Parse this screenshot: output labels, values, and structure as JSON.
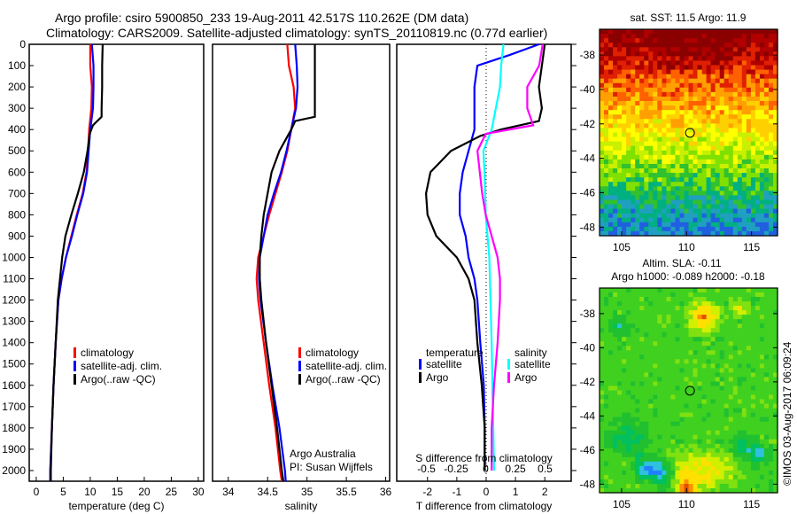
{
  "title": {
    "line1": "Argo profile: csiro 5900850_233 19-Aug-2011 42.517S 110.262E (DM data)",
    "line2": "Climatology: CARS2009. Satellite-adjusted climatology: synTS_20110819.nc (0.77d earlier)"
  },
  "colors": {
    "climatology": "#ff0000",
    "satellite": "#0000ff",
    "argo": "#000000",
    "sal_satellite": "#00ffff",
    "sal_argo": "#ff00ff"
  },
  "credit": "©IMOS 03-Aug-2017 06:09:24",
  "attribution": {
    "line1": "Argo Australia",
    "line2": "PI: Susan Wijffels"
  },
  "chart_data": [
    {
      "type": "line",
      "id": "temp",
      "xlabel": "temperature (deg C)",
      "xlim": [
        -1.3,
        31
      ],
      "ylim": [
        2050,
        0
      ],
      "xticks": [
        0,
        5,
        10,
        15,
        20,
        25,
        30
      ],
      "yticks": [
        0,
        100,
        200,
        300,
        400,
        500,
        600,
        700,
        800,
        900,
        1000,
        1100,
        1200,
        1300,
        1400,
        1500,
        1600,
        1700,
        1800,
        1900,
        2000
      ],
      "legend": [
        "climatology",
        "satellite-adj. clim.",
        "Argo(..raw -QC)"
      ],
      "series": [
        {
          "name": "climatology",
          "color": "#ff0000",
          "depth": [
            0,
            100,
            200,
            300,
            400,
            500,
            600,
            700,
            800,
            900,
            1000,
            1100,
            1200,
            1400,
            1600,
            1800,
            2000,
            2050
          ],
          "values": [
            10,
            10,
            10.3,
            10.2,
            9.8,
            9.6,
            9.3,
            8.6,
            7.5,
            6.5,
            5.5,
            4.7,
            4.1,
            3.6,
            3.2,
            2.9,
            2.6,
            2.6
          ]
        },
        {
          "name": "satellite-adj. clim.",
          "color": "#0000ff",
          "depth": [
            0,
            100,
            200,
            300,
            400,
            500,
            600,
            700,
            800,
            900,
            1000,
            1100,
            1200,
            1400,
            1600,
            1800,
            2000,
            2050
          ],
          "values": [
            10.3,
            10.6,
            10.6,
            10.5,
            10,
            9.7,
            9.4,
            8.7,
            7.6,
            6.6,
            5.5,
            4.7,
            4.1,
            3.6,
            3.2,
            2.9,
            2.6,
            2.6
          ]
        },
        {
          "name": "Argo(..raw -QC)",
          "color": "#000000",
          "depth": [
            0,
            100,
            200,
            300,
            340,
            380,
            420,
            500,
            600,
            700,
            800,
            900,
            1000,
            1200,
            1400,
            1600,
            1800,
            2000,
            2050
          ],
          "values": [
            12.3,
            12.2,
            12.2,
            12.1,
            12.1,
            10.5,
            9.9,
            9.5,
            8.8,
            7.7,
            6.5,
            5.4,
            4.8,
            4,
            3.6,
            3.2,
            2.9,
            2.7,
            2.7
          ]
        }
      ]
    },
    {
      "type": "line",
      "id": "sal",
      "xlabel": "salinity",
      "xlim": [
        33.8,
        36.05
      ],
      "ylim": [
        2050,
        0
      ],
      "xticks": [
        34,
        34.5,
        35,
        35.5,
        36
      ],
      "legend": [
        "climatology",
        "satellite-adj. clim.",
        "Argo(..raw -QC)"
      ],
      "series": [
        {
          "name": "climatology",
          "color": "#ff0000",
          "depth": [
            0,
            100,
            200,
            300,
            400,
            500,
            600,
            700,
            800,
            900,
            1000,
            1100,
            1200,
            1400,
            1600,
            1800,
            2000,
            2050
          ],
          "values": [
            34.75,
            34.77,
            34.83,
            34.85,
            34.8,
            34.75,
            34.68,
            34.6,
            34.52,
            34.45,
            34.38,
            34.36,
            34.38,
            34.45,
            34.52,
            34.6,
            34.66,
            34.68
          ]
        },
        {
          "name": "satellite-adj. clim.",
          "color": "#0000ff",
          "depth": [
            0,
            100,
            200,
            300,
            400,
            500,
            600,
            700,
            800,
            900,
            1000,
            1100,
            1200,
            1400,
            1600,
            1800,
            2000,
            2050
          ],
          "values": [
            34.85,
            34.87,
            34.88,
            34.86,
            34.8,
            34.74,
            34.67,
            34.58,
            34.5,
            34.45,
            34.4,
            34.39,
            34.41,
            34.48,
            34.56,
            34.65,
            34.72,
            34.73
          ]
        },
        {
          "name": "Argo(..raw -QC)",
          "color": "#000000",
          "depth": [
            0,
            100,
            200,
            300,
            340,
            360,
            400,
            500,
            600,
            700,
            800,
            900,
            1000,
            1100,
            1200,
            1400,
            1600,
            1800,
            2000,
            2050
          ],
          "values": [
            35.1,
            35.1,
            35.1,
            35.1,
            35.1,
            34.85,
            34.8,
            34.65,
            34.55,
            34.5,
            34.45,
            34.42,
            34.4,
            34.4,
            34.42,
            34.48,
            34.55,
            34.62,
            34.68,
            34.7
          ]
        }
      ]
    },
    {
      "type": "line",
      "id": "diff",
      "xlabel": "T difference from climatology",
      "x2label": "S difference from climatology",
      "xlim": [
        -3.05,
        2.9
      ],
      "x2lim": [
        -0.75,
        0.72
      ],
      "ylim": [
        2050,
        0
      ],
      "xticks": [
        -2,
        -1,
        0,
        1,
        2
      ],
      "x2ticks": [
        -0.5,
        -0.25,
        0,
        0.25,
        0.5
      ],
      "legend_t": {
        "title": "temperature",
        "items": [
          "satellite",
          "Argo"
        ]
      },
      "legend_s": {
        "title": "salinity",
        "items": [
          "satellite",
          "Argo"
        ]
      },
      "series": [
        {
          "name": "T satellite",
          "axis": "T",
          "color": "#0000ff",
          "depth": [
            0,
            50,
            100,
            200,
            300,
            400,
            500,
            600,
            700,
            800,
            900,
            1000,
            1100,
            1200,
            1400,
            1600,
            1800,
            2000
          ],
          "values": [
            1.8,
            0.8,
            -0.3,
            -0.4,
            -0.4,
            -0.4,
            -0.6,
            -0.8,
            -0.9,
            -0.9,
            -0.7,
            -0.6,
            -0.4,
            -0.3,
            -0.2,
            -0.08,
            -0.05,
            -0.05
          ]
        },
        {
          "name": "T Argo",
          "axis": "T",
          "color": "#000000",
          "depth": [
            0,
            100,
            200,
            300,
            360,
            400,
            430,
            500,
            600,
            700,
            800,
            900,
            1000,
            1100,
            1200,
            1400,
            1600,
            1800,
            2000
          ],
          "values": [
            2.0,
            1.9,
            1.8,
            1.9,
            1.8,
            0.5,
            -0.2,
            -1.2,
            -1.9,
            -2.05,
            -2.0,
            -1.7,
            -1.0,
            -0.6,
            -0.4,
            -0.3,
            -0.15,
            -0.05,
            -0.05
          ]
        },
        {
          "name": "S satellite",
          "axis": "S",
          "color": "#00ffff",
          "depth": [
            0,
            100,
            200,
            400,
            500,
            600,
            800,
            1000,
            1400,
            2000
          ],
          "values": [
            0.15,
            0.13,
            0.12,
            0.05,
            -0.02,
            -0.01,
            0,
            0.03,
            0.05,
            0.07
          ]
        },
        {
          "name": "S Argo",
          "axis": "S",
          "color": "#ff00ff",
          "depth": [
            0,
            100,
            200,
            300,
            380,
            420,
            500,
            600,
            700,
            800,
            900,
            1000,
            1100,
            1200,
            1400,
            1600,
            1800,
            2000
          ],
          "values": [
            0.48,
            0.45,
            0.35,
            0.35,
            0.4,
            0,
            -0.07,
            -0.05,
            -0.03,
            0,
            0.05,
            0.1,
            0.12,
            0.12,
            0.1,
            0.07,
            0.05,
            0.05
          ]
        }
      ]
    },
    {
      "type": "heatmap",
      "id": "sst",
      "title": "sat. SST: 11.5 Argo: 11.9",
      "xlim": [
        103.3,
        117
      ],
      "ylim": [
        -48.5,
        -36.5
      ],
      "xticks": [
        105,
        110,
        115
      ],
      "yticks": [
        -38,
        -40,
        -42,
        -44,
        -46,
        -48
      ],
      "marker": {
        "lon": 110.262,
        "lat": -42.517
      }
    },
    {
      "type": "heatmap",
      "id": "sla",
      "title": "Altim. SLA: -0.11",
      "subtitle": "Argo h1000: -0.089 h2000: -0.18",
      "xlim": [
        103.3,
        117
      ],
      "ylim": [
        -48.5,
        -36.5
      ],
      "xticks": [
        105,
        110,
        115
      ],
      "yticks": [
        -38,
        -40,
        -42,
        -44,
        -46,
        -48
      ],
      "marker": {
        "lon": 110.262,
        "lat": -42.517
      }
    }
  ]
}
